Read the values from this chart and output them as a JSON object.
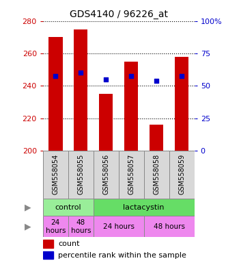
{
  "title": "GDS4140 / 96226_at",
  "samples": [
    "GSM558054",
    "GSM558055",
    "GSM558056",
    "GSM558057",
    "GSM558058",
    "GSM558059"
  ],
  "bar_values": [
    270,
    275,
    235,
    255,
    216,
    258
  ],
  "bar_bottom": 200,
  "percentile_values": [
    246,
    248,
    244,
    246,
    243,
    246
  ],
  "left_ylim": [
    200,
    280
  ],
  "left_yticks": [
    200,
    220,
    240,
    260,
    280
  ],
  "right_ylim": [
    0,
    100
  ],
  "right_yticks": [
    0,
    25,
    50,
    75,
    100
  ],
  "right_yticklabels": [
    "0",
    "25",
    "50",
    "75",
    "100%"
  ],
  "bar_color": "#cc0000",
  "dot_color": "#0000cc",
  "left_tick_color": "#cc0000",
  "right_tick_color": "#0000cc",
  "grid_color": "black",
  "agent_row": [
    {
      "label": "control",
      "span": [
        0,
        2
      ],
      "color": "#99ee99"
    },
    {
      "label": "lactacystin",
      "span": [
        2,
        6
      ],
      "color": "#66dd66"
    }
  ],
  "time_row": [
    {
      "label": "24\nhours",
      "span": [
        0,
        1
      ],
      "color": "#ee88ee"
    },
    {
      "label": "48\nhours",
      "span": [
        1,
        2
      ],
      "color": "#ee88ee"
    },
    {
      "label": "24 hours",
      "span": [
        2,
        4
      ],
      "color": "#ee88ee"
    },
    {
      "label": "48 hours",
      "span": [
        4,
        6
      ],
      "color": "#ee88ee"
    }
  ],
  "legend_count_color": "#cc0000",
  "legend_dot_color": "#0000cc",
  "legend_count_label": "count",
  "legend_dot_label": "percentile rank within the sample",
  "background_color": "white",
  "plot_bg_color": "white",
  "label_area_color": "#d0d0d0"
}
